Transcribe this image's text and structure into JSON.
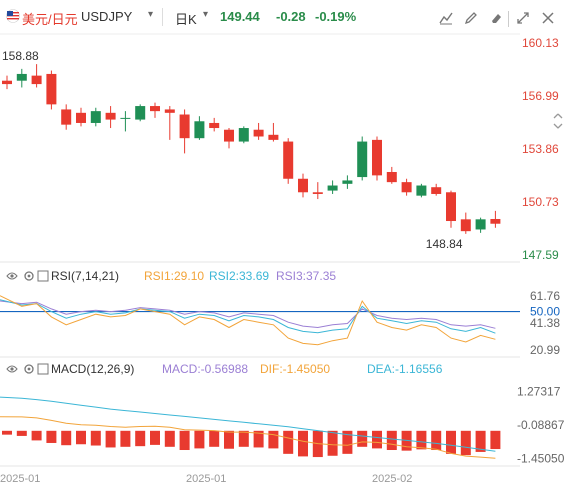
{
  "header": {
    "pair_cn": "美元/日元",
    "pair_en": "USDJPY",
    "period": "日K",
    "price": "149.44",
    "change": "-0.28",
    "change_pct": "-0.19%"
  },
  "colors": {
    "up": "#1f8f55",
    "down": "#e83a2f",
    "header_green": "#2a8c4a"
  },
  "icons": [
    "flag-icon",
    "indicator-icon",
    "draw-icon",
    "eraser-icon",
    "expand-icon",
    "close-icon",
    "settings-icon",
    "eye-icon",
    "chevron-right-icon"
  ],
  "rsi": {
    "title": "RSI(7,14,21)",
    "rsi1": "RSI1:29.10",
    "rsi2": "RSI2:33.69",
    "rsi3": "RSI3:37.35",
    "ticks": [
      "61.76",
      "50.00",
      "41.38",
      "20.99"
    ]
  },
  "macd": {
    "title": "MACD(12,26,9)",
    "macd": "MACD:-0.56988",
    "dif": "DIF:-1.45050",
    "dea": "DEA:-1.16556",
    "ticks": [
      "1.27317",
      "-0.08867",
      "-1.45050"
    ]
  },
  "x_labels": [
    "2025-01",
    "2025-01",
    "2025-02"
  ],
  "chart_data": {
    "type": "candlestick",
    "price_axis": [
      "160.13",
      "156.99",
      "153.86",
      "150.73",
      "147.59"
    ],
    "y_range": [
      147.59,
      160.13
    ],
    "high_label": "158.88",
    "low_label": "148.84",
    "candles": [
      {
        "o": 157.9,
        "h": 158.2,
        "l": 157.4,
        "c": 157.7
      },
      {
        "o": 157.9,
        "h": 158.6,
        "l": 157.5,
        "c": 158.3
      },
      {
        "o": 158.2,
        "h": 158.88,
        "l": 157.5,
        "c": 157.7
      },
      {
        "o": 158.3,
        "h": 158.5,
        "l": 156.2,
        "c": 156.5
      },
      {
        "o": 156.2,
        "h": 156.5,
        "l": 155.0,
        "c": 155.3
      },
      {
        "o": 156.0,
        "h": 156.3,
        "l": 155.2,
        "c": 155.4
      },
      {
        "o": 155.4,
        "h": 156.3,
        "l": 155.2,
        "c": 156.1
      },
      {
        "o": 156.0,
        "h": 156.4,
        "l": 155.1,
        "c": 155.6
      },
      {
        "o": 155.7,
        "h": 156.1,
        "l": 154.9,
        "c": 155.7
      },
      {
        "o": 155.6,
        "h": 156.5,
        "l": 155.5,
        "c": 156.4
      },
      {
        "o": 156.4,
        "h": 156.6,
        "l": 155.7,
        "c": 156.1
      },
      {
        "o": 156.2,
        "h": 156.4,
        "l": 154.4,
        "c": 156.0
      },
      {
        "o": 155.9,
        "h": 156.2,
        "l": 153.6,
        "c": 154.5
      },
      {
        "o": 154.5,
        "h": 155.8,
        "l": 154.4,
        "c": 155.5
      },
      {
        "o": 155.4,
        "h": 155.7,
        "l": 154.9,
        "c": 155.1
      },
      {
        "o": 155.0,
        "h": 155.1,
        "l": 153.9,
        "c": 154.3
      },
      {
        "o": 154.3,
        "h": 155.2,
        "l": 154.2,
        "c": 155.1
      },
      {
        "o": 155.0,
        "h": 155.4,
        "l": 154.4,
        "c": 154.6
      },
      {
        "o": 154.7,
        "h": 155.4,
        "l": 154.3,
        "c": 154.4
      },
      {
        "o": 154.3,
        "h": 154.5,
        "l": 151.8,
        "c": 152.1
      },
      {
        "o": 152.1,
        "h": 152.4,
        "l": 151.0,
        "c": 151.3
      },
      {
        "o": 151.3,
        "h": 151.9,
        "l": 150.9,
        "c": 151.2
      },
      {
        "o": 151.4,
        "h": 152.0,
        "l": 151.2,
        "c": 151.7
      },
      {
        "o": 151.8,
        "h": 152.3,
        "l": 151.5,
        "c": 152.0
      },
      {
        "o": 152.2,
        "h": 154.6,
        "l": 152.0,
        "c": 154.3
      },
      {
        "o": 154.4,
        "h": 154.6,
        "l": 152.0,
        "c": 152.3
      },
      {
        "o": 152.5,
        "h": 152.8,
        "l": 151.8,
        "c": 151.9
      },
      {
        "o": 151.9,
        "h": 152.1,
        "l": 151.1,
        "c": 151.3
      },
      {
        "o": 151.1,
        "h": 151.8,
        "l": 151.0,
        "c": 151.7
      },
      {
        "o": 151.6,
        "h": 151.8,
        "l": 151.1,
        "c": 151.2
      },
      {
        "o": 151.3,
        "h": 151.4,
        "l": 149.2,
        "c": 149.6
      },
      {
        "o": 149.7,
        "h": 150.1,
        "l": 148.84,
        "c": 149.0
      },
      {
        "o": 149.1,
        "h": 149.8,
        "l": 148.9,
        "c": 149.7
      },
      {
        "o": 149.72,
        "h": 150.2,
        "l": 149.2,
        "c": 149.44
      }
    ],
    "rsi_range": [
      20.99,
      61.76
    ],
    "rsi1": [
      62,
      54,
      56,
      46,
      40,
      44,
      48,
      46,
      47,
      52,
      50,
      48,
      40,
      46,
      44,
      38,
      44,
      42,
      40,
      30,
      26,
      25,
      28,
      30,
      58,
      42,
      38,
      36,
      40,
      38,
      30,
      27,
      32,
      29.1
    ],
    "rsi2": [
      59,
      55,
      56,
      50,
      45,
      48,
      50,
      48,
      49,
      52,
      51,
      50,
      45,
      48,
      47,
      43,
      47,
      46,
      44,
      38,
      35,
      34,
      36,
      37,
      54,
      45,
      43,
      41,
      43,
      42,
      37,
      35,
      38,
      33.69
    ],
    "rsi3": [
      58,
      56,
      57,
      52,
      48,
      50,
      51,
      50,
      51,
      53,
      52,
      51,
      48,
      50,
      49,
      46,
      49,
      48,
      47,
      42,
      39,
      38,
      40,
      41,
      52,
      47,
      45,
      44,
      45,
      44,
      40,
      39,
      40,
      37.35
    ],
    "macd_range": [
      -1.52,
      1.3
    ],
    "macd_hist": [
      -0.12,
      -0.16,
      -0.3,
      -0.38,
      -0.45,
      -0.42,
      -0.46,
      -0.52,
      -0.5,
      -0.48,
      -0.44,
      -0.5,
      -0.6,
      -0.55,
      -0.5,
      -0.56,
      -0.5,
      -0.52,
      -0.55,
      -0.72,
      -0.8,
      -0.82,
      -0.78,
      -0.72,
      -0.5,
      -0.55,
      -0.6,
      -0.62,
      -0.58,
      -0.6,
      -0.72,
      -0.76,
      -0.66,
      -0.56988
    ],
    "dif": [
      0.25,
      0.24,
      0.2,
      0.1,
      -0.02,
      -0.08,
      -0.1,
      -0.15,
      -0.18,
      -0.15,
      -0.14,
      -0.18,
      -0.28,
      -0.3,
      -0.32,
      -0.38,
      -0.38,
      -0.42,
      -0.48,
      -0.62,
      -0.75,
      -0.85,
      -0.9,
      -0.92,
      -0.78,
      -0.8,
      -0.88,
      -0.98,
      -1.02,
      -1.08,
      -1.25,
      -1.36,
      -1.4,
      -1.4505
    ],
    "dea": [
      1.05,
      1.0,
      0.95,
      0.88,
      0.8,
      0.72,
      0.64,
      0.56,
      0.5,
      0.44,
      0.38,
      0.32,
      0.26,
      0.2,
      0.14,
      0.08,
      0.02,
      -0.04,
      -0.1,
      -0.16,
      -0.24,
      -0.32,
      -0.4,
      -0.48,
      -0.54,
      -0.6,
      -0.66,
      -0.72,
      -0.78,
      -0.84,
      -0.92,
      -1.0,
      -1.08,
      -1.16556
    ]
  }
}
